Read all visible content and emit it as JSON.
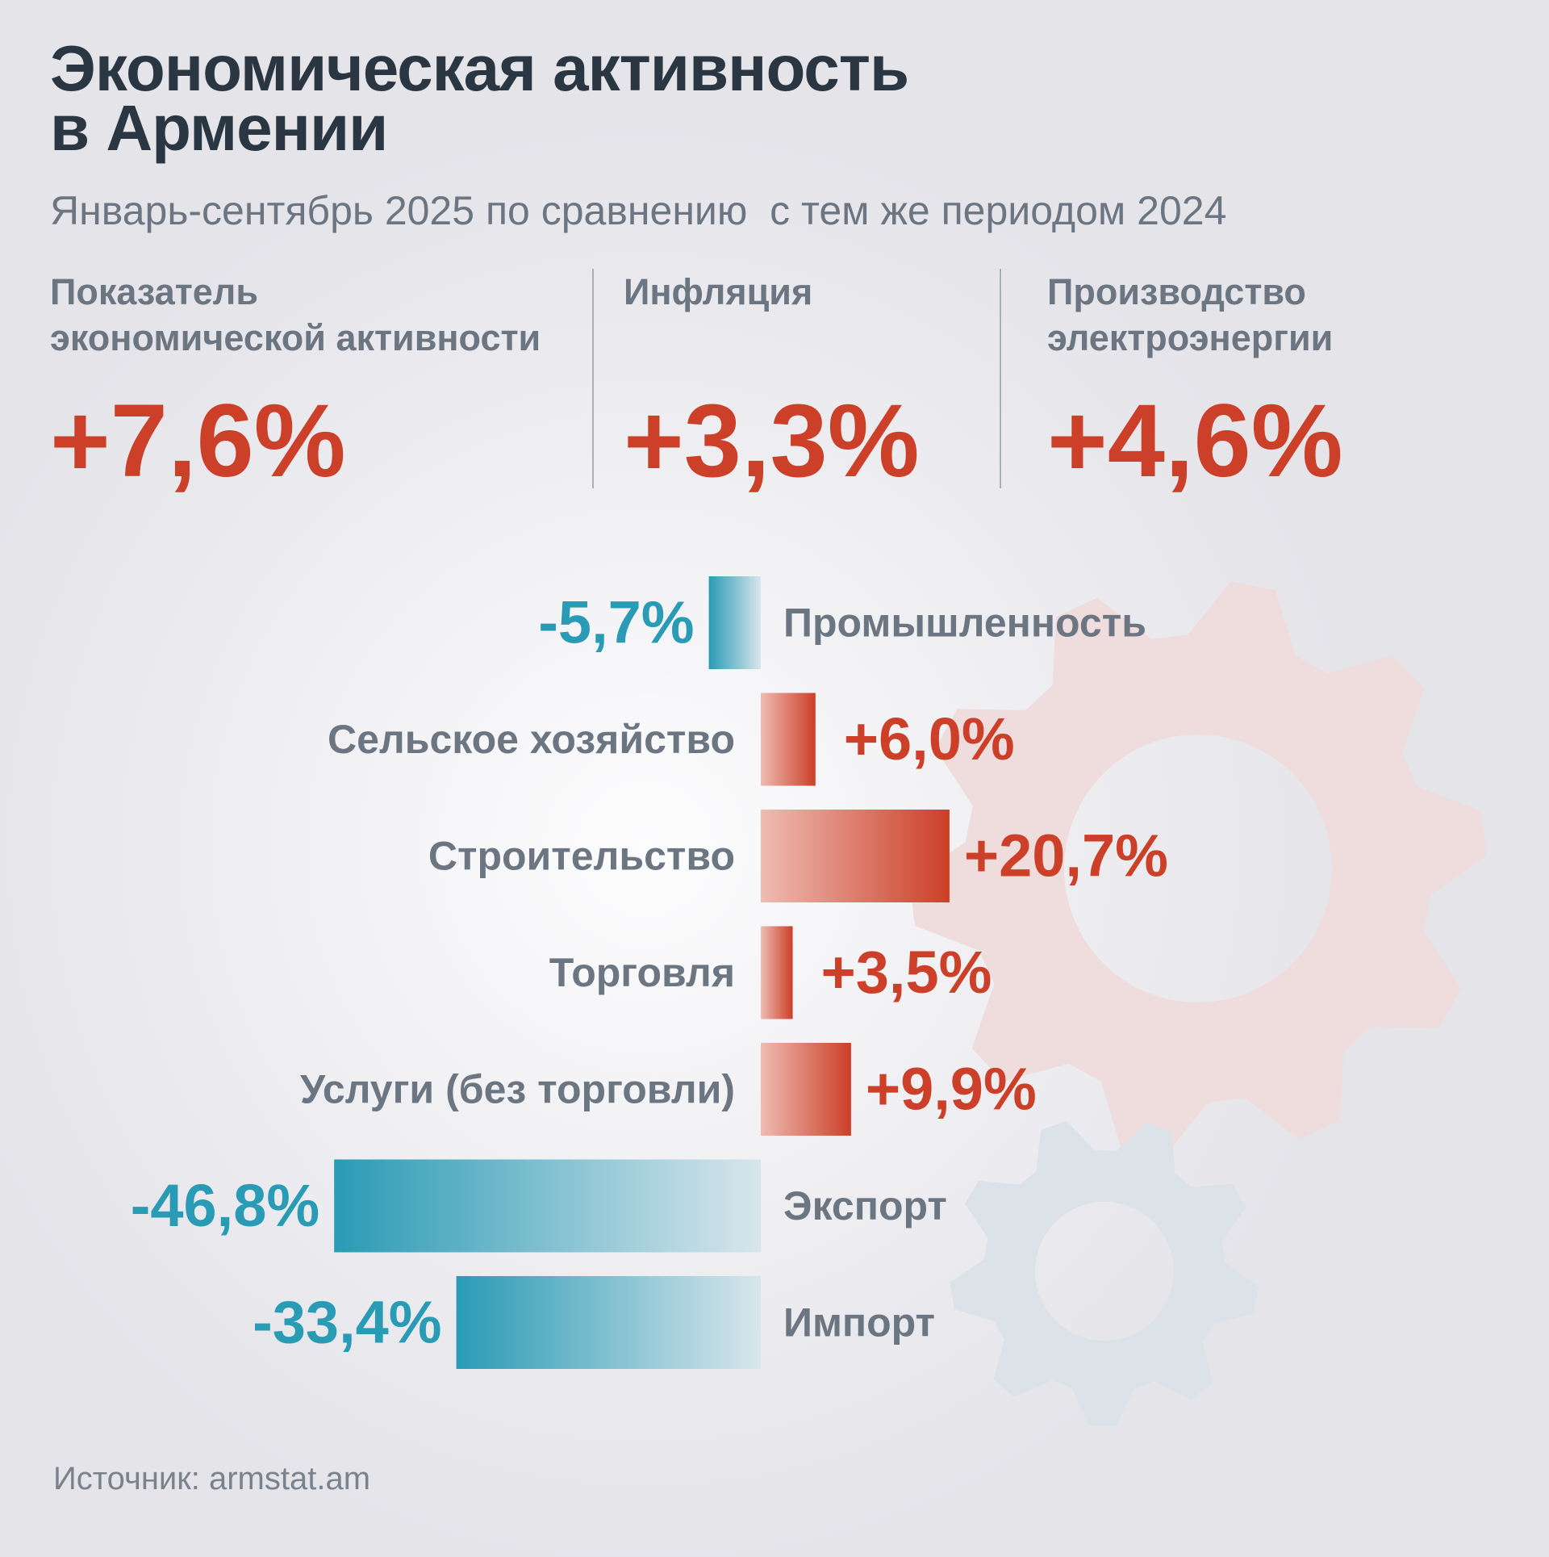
{
  "title_line1": "Экономическая активность",
  "title_line2": "в Армении",
  "subtitle": "Январь-сентябрь 2025 по сравнению  с тем же периодом 2024",
  "kpis": [
    {
      "label_line1": "Показатель",
      "label_line2": "экономической активности",
      "value": "+7,6%"
    },
    {
      "label_line1": "Инфляция",
      "label_line2": "",
      "value": "+3,3%"
    },
    {
      "label_line1": "Производство",
      "label_line2": "электроэнергии",
      "value": "+4,6%"
    }
  ],
  "colors": {
    "positive": "#cc3f28",
    "negative": "#2a9bb5",
    "label": "#6b7682",
    "title": "#2a3641"
  },
  "chart_data": {
    "type": "bar",
    "orientation": "horizontal-diverging",
    "categories": [
      "Промышленность",
      "Сельское хозяйство",
      "Строительство",
      "Торговля",
      "Услуги (без торговли)",
      "Экспорт",
      "Импорт"
    ],
    "values": [
      -5.7,
      6.0,
      20.7,
      3.5,
      9.9,
      -46.8,
      -33.4
    ],
    "data_labels": [
      "-5,7%",
      "+6,0%",
      "+20,7%",
      "+3,5%",
      "+9,9%",
      "-46,8%",
      "-33,4%"
    ],
    "unit": "%"
  },
  "source": "Источник: armstat.am",
  "decor": {
    "icons": [
      "gear-icon-large",
      "gear-icon-small"
    ]
  }
}
